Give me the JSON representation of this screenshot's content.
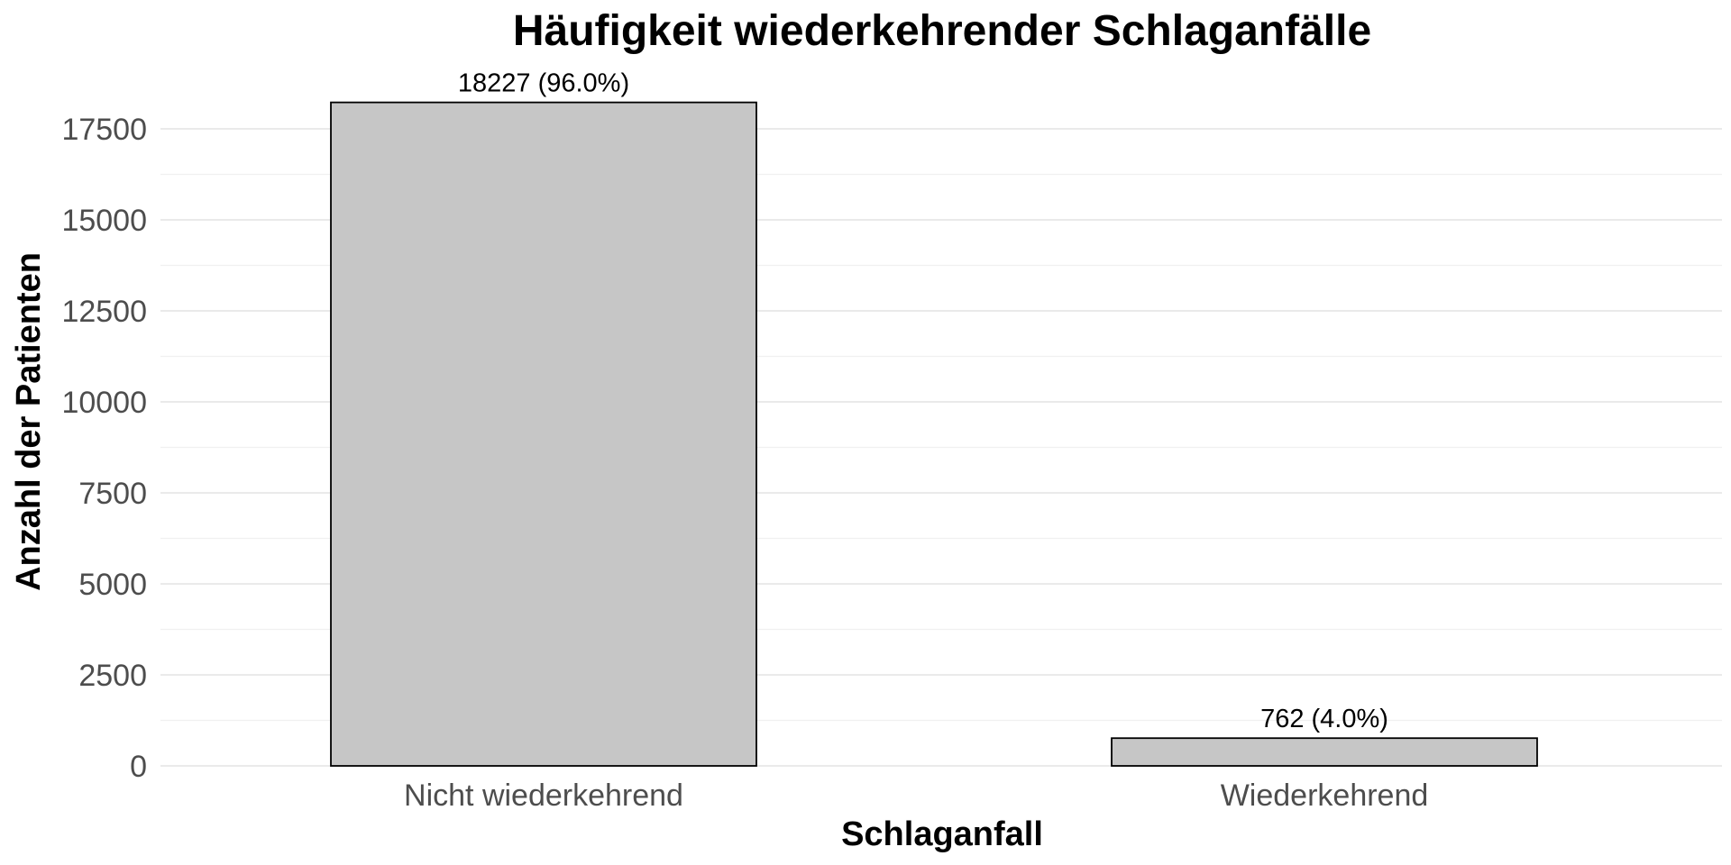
{
  "chart_data": {
    "type": "bar",
    "title": "Häufigkeit wiederkehrender Schlaganfälle",
    "xlabel": "Schlaganfall",
    "ylabel": "Anzahl der Patienten",
    "categories": [
      "Nicht wiederkehrend",
      "Wiederkehrend"
    ],
    "values": [
      18227,
      762
    ],
    "data_labels": [
      "18227 (96.0%)",
      "762 (4.0%)"
    ],
    "ylim": [
      0,
      18500
    ],
    "y_ticks": [
      0,
      2500,
      5000,
      7500,
      10000,
      12500,
      15000,
      17500
    ],
    "y_tick_labels": [
      "0",
      "2500",
      "5000",
      "7500",
      "10000",
      "12500",
      "15000",
      "17500"
    ],
    "grid": true,
    "legend": "none",
    "bar_color": "#c6c6c6",
    "bar_border_color": "#000000"
  }
}
